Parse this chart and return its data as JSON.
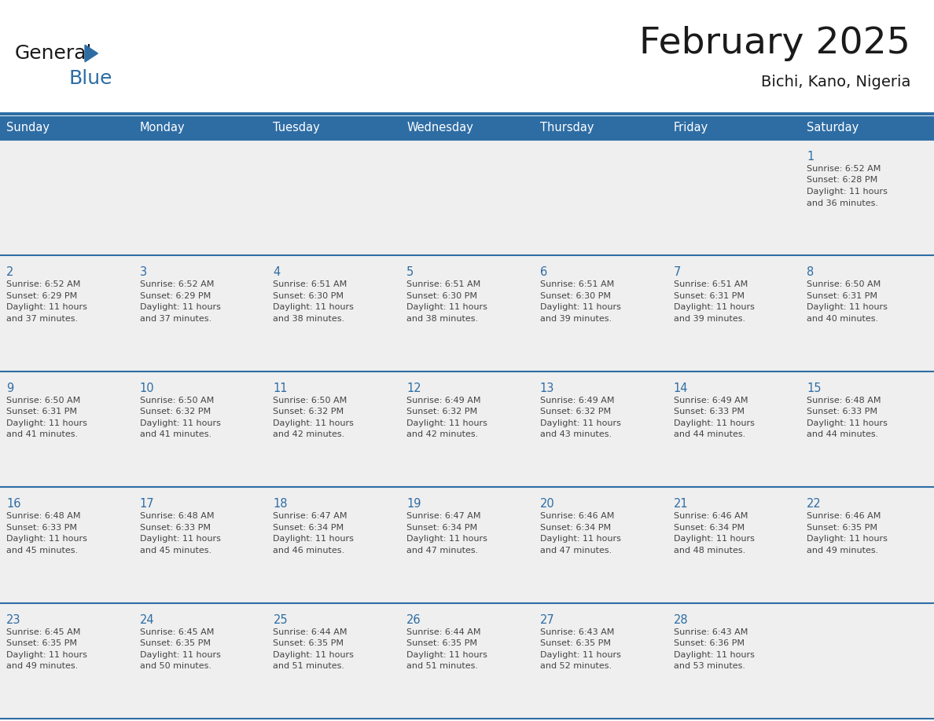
{
  "title": "February 2025",
  "subtitle": "Bichi, Kano, Nigeria",
  "header_bg_color": "#2E6DA4",
  "header_text_color": "#FFFFFF",
  "cell_bg_color": "#EFEFEF",
  "border_color": "#2E6DA4",
  "day_number_color": "#2E6DA4",
  "cell_text_color": "#444444",
  "title_color": "#1a1a1a",
  "days_of_week": [
    "Sunday",
    "Monday",
    "Tuesday",
    "Wednesday",
    "Thursday",
    "Friday",
    "Saturday"
  ],
  "weeks": [
    [
      null,
      null,
      null,
      null,
      null,
      null,
      1
    ],
    [
      2,
      3,
      4,
      5,
      6,
      7,
      8
    ],
    [
      9,
      10,
      11,
      12,
      13,
      14,
      15
    ],
    [
      16,
      17,
      18,
      19,
      20,
      21,
      22
    ],
    [
      23,
      24,
      25,
      26,
      27,
      28,
      null
    ]
  ],
  "cell_data": {
    "1": {
      "sunrise": "6:52 AM",
      "sunset": "6:28 PM",
      "daylight_hours": 11,
      "daylight_minutes": 36
    },
    "2": {
      "sunrise": "6:52 AM",
      "sunset": "6:29 PM",
      "daylight_hours": 11,
      "daylight_minutes": 37
    },
    "3": {
      "sunrise": "6:52 AM",
      "sunset": "6:29 PM",
      "daylight_hours": 11,
      "daylight_minutes": 37
    },
    "4": {
      "sunrise": "6:51 AM",
      "sunset": "6:30 PM",
      "daylight_hours": 11,
      "daylight_minutes": 38
    },
    "5": {
      "sunrise": "6:51 AM",
      "sunset": "6:30 PM",
      "daylight_hours": 11,
      "daylight_minutes": 38
    },
    "6": {
      "sunrise": "6:51 AM",
      "sunset": "6:30 PM",
      "daylight_hours": 11,
      "daylight_minutes": 39
    },
    "7": {
      "sunrise": "6:51 AM",
      "sunset": "6:31 PM",
      "daylight_hours": 11,
      "daylight_minutes": 39
    },
    "8": {
      "sunrise": "6:50 AM",
      "sunset": "6:31 PM",
      "daylight_hours": 11,
      "daylight_minutes": 40
    },
    "9": {
      "sunrise": "6:50 AM",
      "sunset": "6:31 PM",
      "daylight_hours": 11,
      "daylight_minutes": 41
    },
    "10": {
      "sunrise": "6:50 AM",
      "sunset": "6:32 PM",
      "daylight_hours": 11,
      "daylight_minutes": 41
    },
    "11": {
      "sunrise": "6:50 AM",
      "sunset": "6:32 PM",
      "daylight_hours": 11,
      "daylight_minutes": 42
    },
    "12": {
      "sunrise": "6:49 AM",
      "sunset": "6:32 PM",
      "daylight_hours": 11,
      "daylight_minutes": 42
    },
    "13": {
      "sunrise": "6:49 AM",
      "sunset": "6:32 PM",
      "daylight_hours": 11,
      "daylight_minutes": 43
    },
    "14": {
      "sunrise": "6:49 AM",
      "sunset": "6:33 PM",
      "daylight_hours": 11,
      "daylight_minutes": 44
    },
    "15": {
      "sunrise": "6:48 AM",
      "sunset": "6:33 PM",
      "daylight_hours": 11,
      "daylight_minutes": 44
    },
    "16": {
      "sunrise": "6:48 AM",
      "sunset": "6:33 PM",
      "daylight_hours": 11,
      "daylight_minutes": 45
    },
    "17": {
      "sunrise": "6:48 AM",
      "sunset": "6:33 PM",
      "daylight_hours": 11,
      "daylight_minutes": 45
    },
    "18": {
      "sunrise": "6:47 AM",
      "sunset": "6:34 PM",
      "daylight_hours": 11,
      "daylight_minutes": 46
    },
    "19": {
      "sunrise": "6:47 AM",
      "sunset": "6:34 PM",
      "daylight_hours": 11,
      "daylight_minutes": 47
    },
    "20": {
      "sunrise": "6:46 AM",
      "sunset": "6:34 PM",
      "daylight_hours": 11,
      "daylight_minutes": 47
    },
    "21": {
      "sunrise": "6:46 AM",
      "sunset": "6:34 PM",
      "daylight_hours": 11,
      "daylight_minutes": 48
    },
    "22": {
      "sunrise": "6:46 AM",
      "sunset": "6:35 PM",
      "daylight_hours": 11,
      "daylight_minutes": 49
    },
    "23": {
      "sunrise": "6:45 AM",
      "sunset": "6:35 PM",
      "daylight_hours": 11,
      "daylight_minutes": 49
    },
    "24": {
      "sunrise": "6:45 AM",
      "sunset": "6:35 PM",
      "daylight_hours": 11,
      "daylight_minutes": 50
    },
    "25": {
      "sunrise": "6:44 AM",
      "sunset": "6:35 PM",
      "daylight_hours": 11,
      "daylight_minutes": 51
    },
    "26": {
      "sunrise": "6:44 AM",
      "sunset": "6:35 PM",
      "daylight_hours": 11,
      "daylight_minutes": 51
    },
    "27": {
      "sunrise": "6:43 AM",
      "sunset": "6:35 PM",
      "daylight_hours": 11,
      "daylight_minutes": 52
    },
    "28": {
      "sunrise": "6:43 AM",
      "sunset": "6:36 PM",
      "daylight_hours": 11,
      "daylight_minutes": 53
    }
  },
  "logo_text1": "General",
  "logo_text2": "Blue",
  "header_fontsize": 10.5,
  "cell_day_fontsize": 10.5,
  "cell_info_fontsize": 8.0,
  "title_fontsize": 34,
  "subtitle_fontsize": 14
}
